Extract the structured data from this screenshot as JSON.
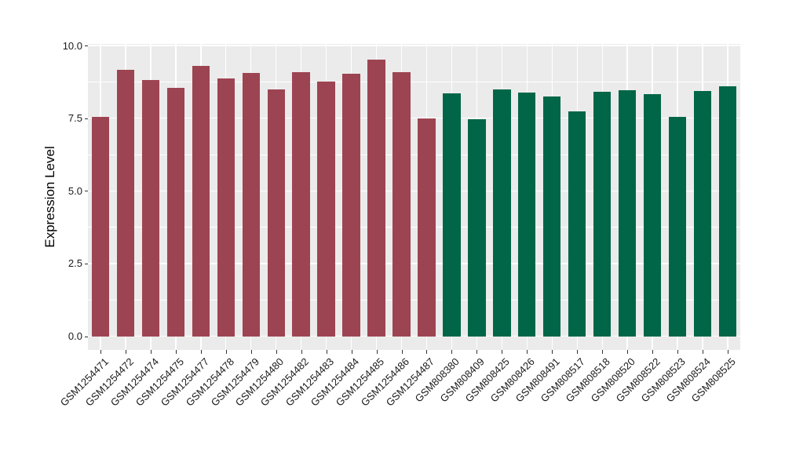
{
  "figure": {
    "background": "#FFFFFF",
    "panel_background": "#EBEBEB",
    "grid_color": "#FFFFFF",
    "tick_color": "#333333",
    "tick_label_color": "#1A1A1A",
    "axis_title_color": "#000000"
  },
  "chart_data": {
    "type": "bar",
    "title": "",
    "xlabel": "",
    "ylabel": "Expression Level",
    "ylim": [
      -0.47,
      10.05
    ],
    "yticks": [
      0,
      2.5,
      5,
      7.5,
      10
    ],
    "ytick_labels": [
      "0.0",
      "2.5",
      "5.0",
      "7.5",
      "10.0"
    ],
    "yticks_minor": [
      1.25,
      3.75,
      6.25,
      8.75
    ],
    "grid": "on",
    "legend_position": "none",
    "bar_width_fraction": 0.7,
    "x_label_rotation_deg": 45,
    "categories": [
      "GSM1254471",
      "GSM1254472",
      "GSM1254474",
      "GSM1254475",
      "GSM1254477",
      "GSM1254478",
      "GSM1254479",
      "GSM1254480",
      "GSM1254482",
      "GSM1254483",
      "GSM1254484",
      "GSM1254485",
      "GSM1254486",
      "GSM1254487",
      "GSM808380",
      "GSM808409",
      "GSM808425",
      "GSM808426",
      "GSM808491",
      "GSM808517",
      "GSM808518",
      "GSM808520",
      "GSM808522",
      "GSM808523",
      "GSM808524",
      "GSM808525"
    ],
    "values": [
      7.55,
      9.17,
      8.8,
      8.53,
      9.3,
      8.87,
      9.06,
      8.49,
      9.07,
      8.77,
      9.02,
      9.52,
      9.09,
      7.49,
      8.35,
      7.46,
      8.49,
      8.37,
      8.25,
      7.72,
      8.41,
      8.47,
      8.33,
      7.55,
      8.44,
      8.61
    ],
    "groups": [
      "maroon",
      "maroon",
      "maroon",
      "maroon",
      "maroon",
      "maroon",
      "maroon",
      "maroon",
      "maroon",
      "maroon",
      "maroon",
      "maroon",
      "maroon",
      "maroon",
      "green",
      "green",
      "green",
      "green",
      "green",
      "green",
      "green",
      "green",
      "green",
      "green",
      "green",
      "green"
    ],
    "group_colors": {
      "maroon": "#9D4452",
      "green": "#006647"
    }
  }
}
